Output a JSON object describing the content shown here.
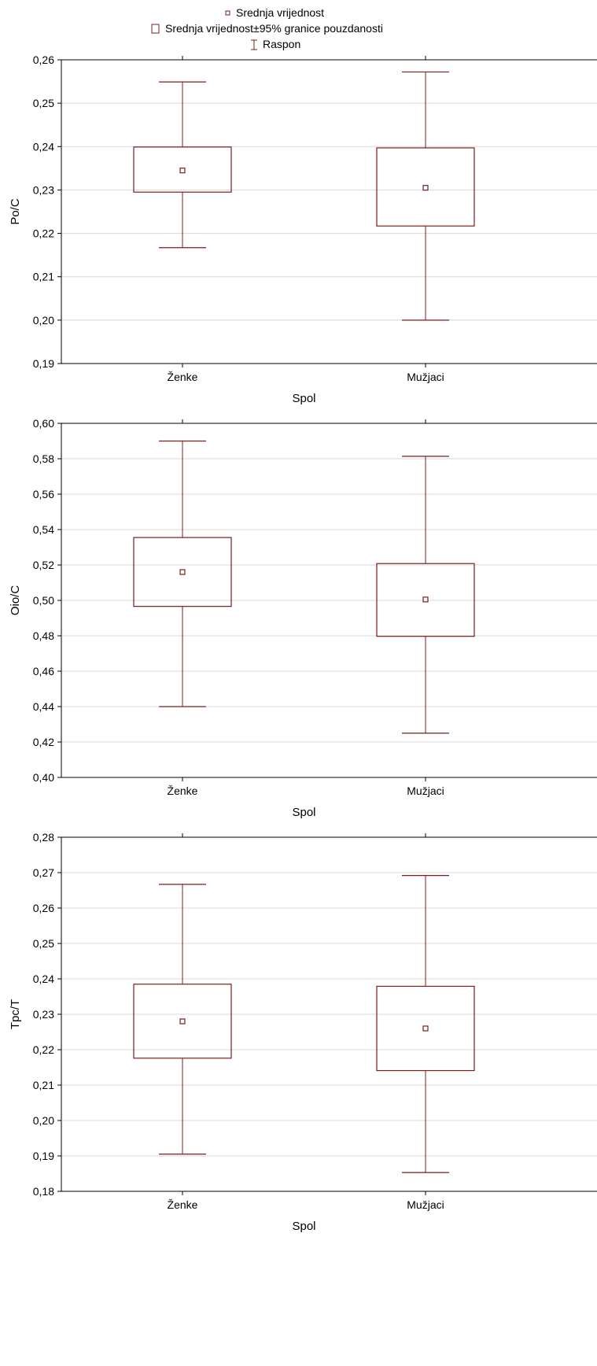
{
  "legend": {
    "mean_label": "Srednja vrijednost",
    "ci_label": "Srednja vrijednost±95% granice pouzdanosti",
    "range_label": "Raspon"
  },
  "colors": {
    "series": "#7b1c1c",
    "grid": "#d8d8d8",
    "axis": "#000000"
  },
  "chart_data": [
    {
      "type": "box",
      "ylabel": "Po/C",
      "xlabel": "Spol",
      "ylim": [
        0.19,
        0.26
      ],
      "yticks": [
        0.19,
        0.2,
        0.21,
        0.22,
        0.23,
        0.24,
        0.25,
        0.26
      ],
      "tick_decimals": 2,
      "grid": true,
      "categories": [
        "Ženke",
        "Mužjaci"
      ],
      "mean": [
        0.2345,
        0.2305
      ],
      "ci_low": [
        0.2295,
        0.2217
      ],
      "ci_high": [
        0.2399,
        0.2397
      ],
      "min": [
        0.2167,
        0.2
      ],
      "max": [
        0.2549,
        0.2572
      ]
    },
    {
      "type": "box",
      "ylabel": "Oio/C",
      "xlabel": "Spol",
      "ylim": [
        0.4,
        0.6
      ],
      "yticks": [
        0.4,
        0.42,
        0.44,
        0.46,
        0.48,
        0.5,
        0.52,
        0.54,
        0.56,
        0.58,
        0.6
      ],
      "tick_decimals": 2,
      "grid": true,
      "categories": [
        "Ženke",
        "Mužjaci"
      ],
      "mean": [
        0.516,
        0.5005
      ],
      "ci_low": [
        0.4966,
        0.4797
      ],
      "ci_high": [
        0.5355,
        0.5208
      ],
      "min": [
        0.44,
        0.425
      ],
      "max": [
        0.59,
        0.5814
      ]
    },
    {
      "type": "box",
      "ylabel": "Tpc/T",
      "xlabel": "Spol",
      "ylim": [
        0.18,
        0.28
      ],
      "yticks": [
        0.18,
        0.19,
        0.2,
        0.21,
        0.22,
        0.23,
        0.24,
        0.25,
        0.26,
        0.27,
        0.28
      ],
      "tick_decimals": 2,
      "grid": true,
      "categories": [
        "Ženke",
        "Mužjaci"
      ],
      "mean": [
        0.228,
        0.226
      ],
      "ci_low": [
        0.2176,
        0.2141
      ],
      "ci_high": [
        0.2385,
        0.2379
      ],
      "min": [
        0.1905,
        0.1853
      ],
      "max": [
        0.2667,
        0.2692
      ]
    }
  ]
}
